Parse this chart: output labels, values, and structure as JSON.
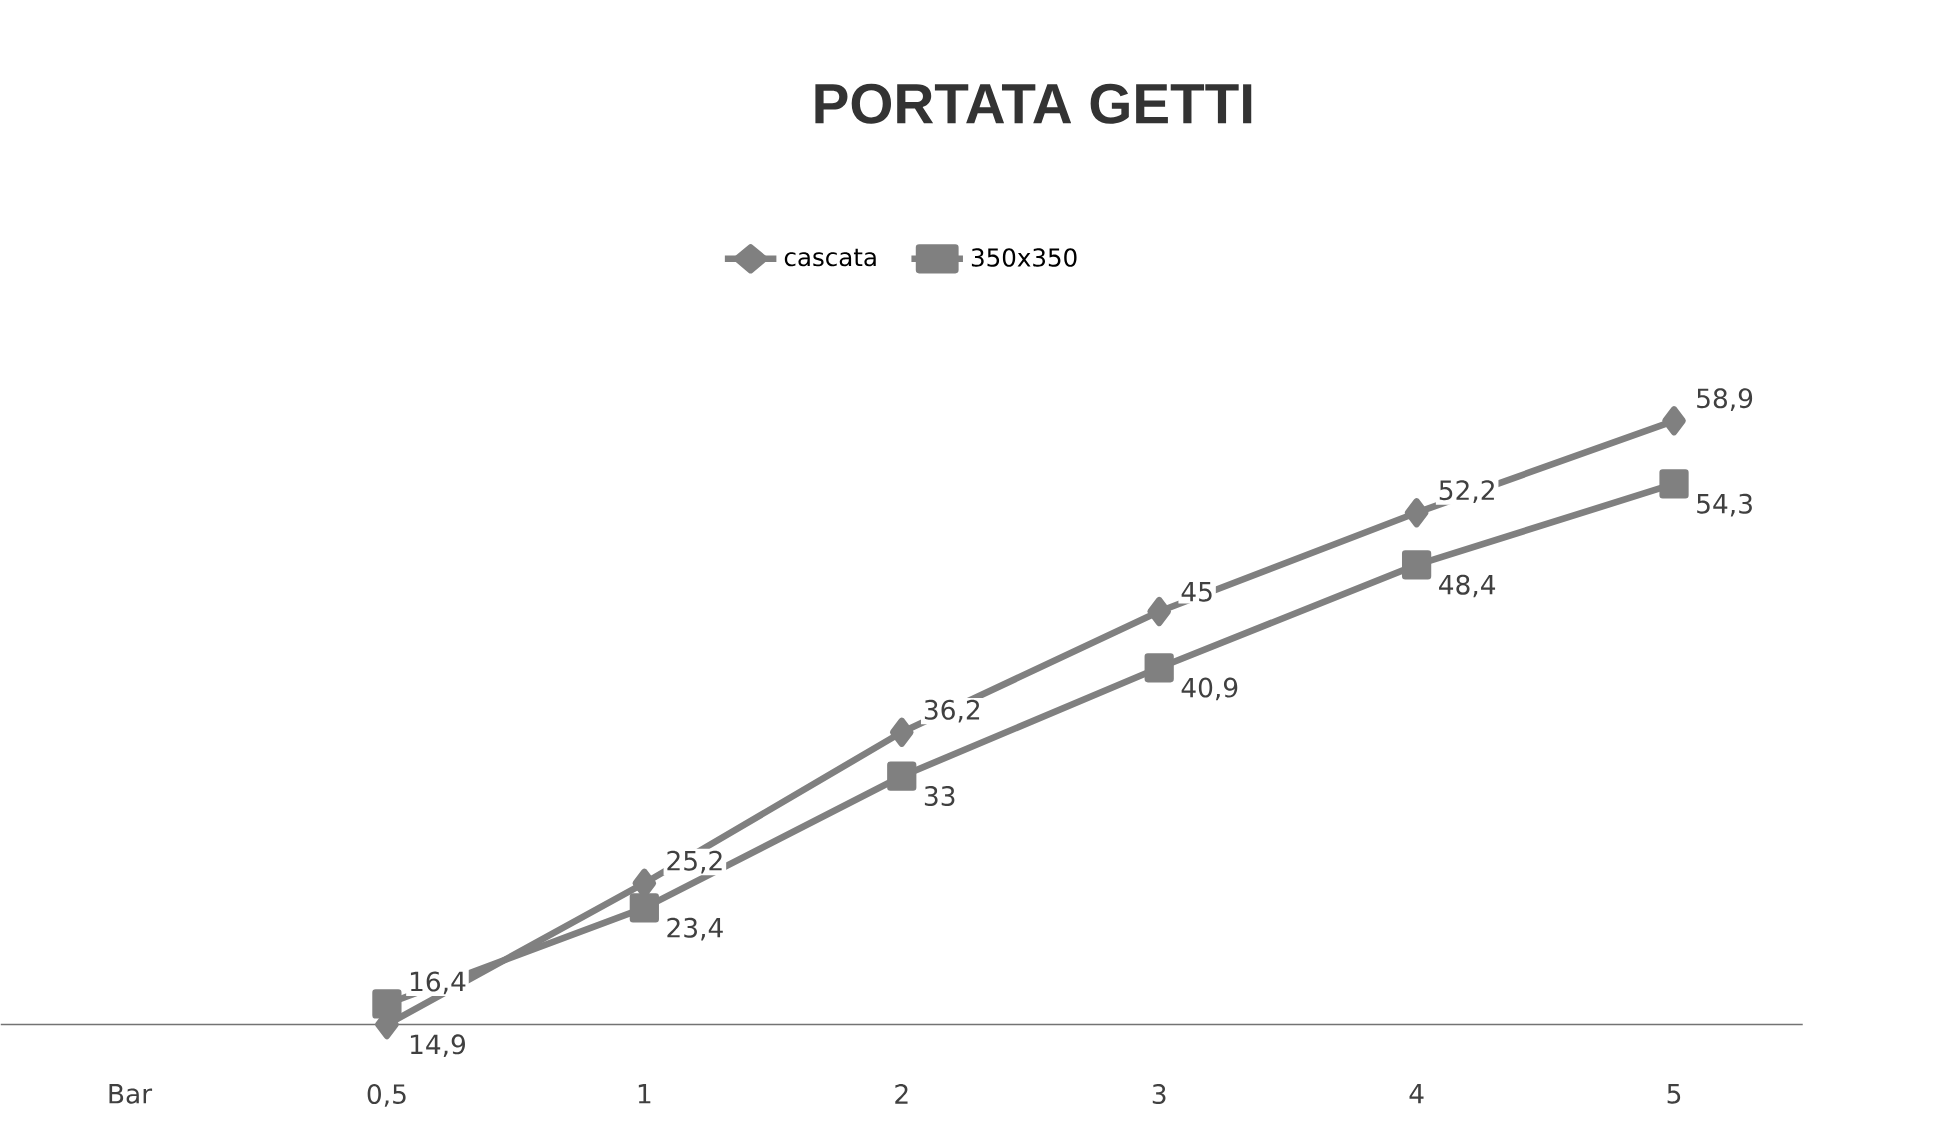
{
  "chart_data": {
    "type": "line",
    "title": "PORTATA GETTI",
    "categories": [
      "Bar",
      "0,5",
      "1",
      "2",
      "3",
      "4",
      "5"
    ],
    "series": [
      {
        "name": "cascata",
        "color": "#808080",
        "marker": "diamond",
        "values": [
          null,
          14.9,
          25.2,
          36.2,
          45,
          52.2,
          58.9
        ],
        "value_labels": [
          null,
          "14,9",
          "25,2",
          "36,2",
          "45",
          "52,2",
          "58,9"
        ]
      },
      {
        "name": "350x350",
        "color": "#808080",
        "marker": "square",
        "values": [
          null,
          16.4,
          23.4,
          33,
          40.9,
          48.4,
          54.3
        ],
        "value_labels": [
          null,
          "16,4",
          "23,4",
          "33",
          "40,9",
          "48,4",
          "54,3"
        ]
      }
    ],
    "tick_labels": "x",
    "legend": "top",
    "grid": false,
    "line_style": "solid"
  }
}
